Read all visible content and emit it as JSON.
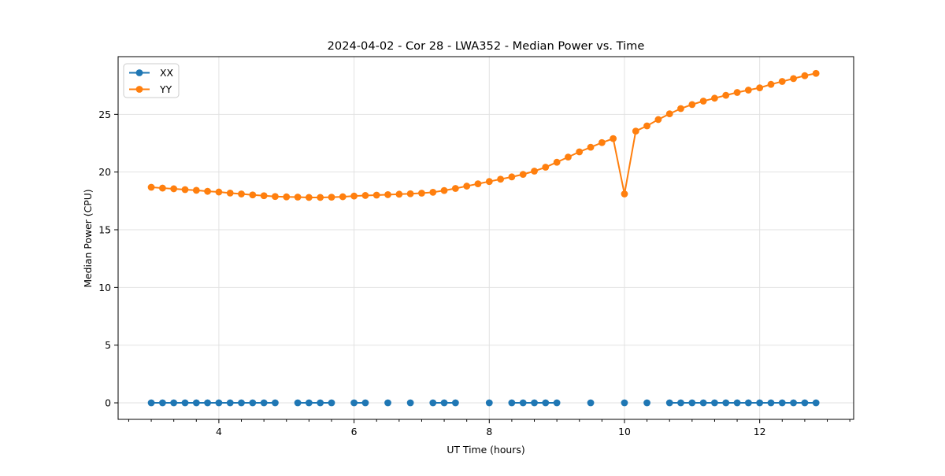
{
  "chart_data": {
    "type": "line",
    "title": "2024-04-02 - Cor 28 - LWA352 - Median Power vs. Time",
    "xlabel": "UT Time (hours)",
    "ylabel": "Median Power (CPU)",
    "xlim": [
      2.51,
      13.39
    ],
    "ylim": [
      -1.43,
      30.0
    ],
    "x_ticks": [
      4,
      6,
      8,
      10,
      12
    ],
    "y_ticks": [
      0,
      5,
      10,
      15,
      20,
      25
    ],
    "x_minor_step": 0.3333,
    "grid": true,
    "grid_color": "#e2e2e2",
    "legend_position": "upper left",
    "series": [
      {
        "name": "XX",
        "color": "#1f77b4",
        "points": [
          [
            3.0,
            0
          ],
          [
            3.167,
            0
          ],
          [
            3.333,
            0
          ],
          [
            3.5,
            0
          ],
          [
            3.667,
            0
          ],
          [
            3.833,
            0
          ],
          [
            4.0,
            0
          ],
          [
            4.167,
            0
          ],
          [
            4.333,
            0
          ],
          [
            4.5,
            0
          ],
          [
            4.667,
            0
          ],
          [
            4.833,
            0
          ],
          [
            5.167,
            0
          ],
          [
            5.333,
            0
          ],
          [
            5.5,
            0
          ],
          [
            5.667,
            0
          ],
          [
            6.0,
            0
          ],
          [
            6.167,
            0
          ],
          [
            6.5,
            0
          ],
          [
            6.833,
            0
          ],
          [
            7.167,
            0
          ],
          [
            7.333,
            0
          ],
          [
            7.5,
            0
          ],
          [
            8.0,
            0
          ],
          [
            8.333,
            0
          ],
          [
            8.5,
            0
          ],
          [
            8.667,
            0
          ],
          [
            8.833,
            0
          ],
          [
            9.0,
            0
          ],
          [
            9.5,
            0
          ],
          [
            10.0,
            0
          ],
          [
            10.333,
            0
          ],
          [
            10.667,
            0
          ],
          [
            10.833,
            0
          ],
          [
            11.0,
            0
          ],
          [
            11.167,
            0
          ],
          [
            11.333,
            0
          ],
          [
            11.5,
            0
          ],
          [
            11.667,
            0
          ],
          [
            11.833,
            0
          ],
          [
            12.0,
            0
          ],
          [
            12.167,
            0
          ],
          [
            12.333,
            0
          ],
          [
            12.5,
            0
          ],
          [
            12.667,
            0
          ],
          [
            12.833,
            0
          ]
        ]
      },
      {
        "name": "YY",
        "color": "#ff7f0e",
        "points": [
          [
            3.0,
            18.68
          ],
          [
            3.167,
            18.61
          ],
          [
            3.333,
            18.55
          ],
          [
            3.5,
            18.48
          ],
          [
            3.667,
            18.42
          ],
          [
            3.833,
            18.33
          ],
          [
            4.0,
            18.27
          ],
          [
            4.167,
            18.18
          ],
          [
            4.333,
            18.1
          ],
          [
            4.5,
            18.02
          ],
          [
            4.667,
            17.95
          ],
          [
            4.833,
            17.88
          ],
          [
            5.0,
            17.85
          ],
          [
            5.167,
            17.83
          ],
          [
            5.333,
            17.8
          ],
          [
            5.5,
            17.8
          ],
          [
            5.667,
            17.82
          ],
          [
            5.833,
            17.86
          ],
          [
            6.0,
            17.92
          ],
          [
            6.167,
            17.97
          ],
          [
            6.333,
            18.0
          ],
          [
            6.5,
            18.04
          ],
          [
            6.667,
            18.08
          ],
          [
            6.833,
            18.12
          ],
          [
            7.0,
            18.17
          ],
          [
            7.167,
            18.25
          ],
          [
            7.333,
            18.4
          ],
          [
            7.5,
            18.58
          ],
          [
            7.667,
            18.78
          ],
          [
            7.833,
            18.98
          ],
          [
            8.0,
            19.18
          ],
          [
            8.167,
            19.38
          ],
          [
            8.333,
            19.58
          ],
          [
            8.5,
            19.8
          ],
          [
            8.667,
            20.08
          ],
          [
            8.833,
            20.42
          ],
          [
            9.0,
            20.85
          ],
          [
            9.167,
            21.3
          ],
          [
            9.333,
            21.75
          ],
          [
            9.5,
            22.15
          ],
          [
            9.667,
            22.55
          ],
          [
            9.833,
            22.9
          ],
          [
            10.0,
            18.1
          ],
          [
            10.167,
            23.55
          ],
          [
            10.333,
            24.0
          ],
          [
            10.5,
            24.55
          ],
          [
            10.667,
            25.05
          ],
          [
            10.833,
            25.5
          ],
          [
            11.0,
            25.85
          ],
          [
            11.167,
            26.15
          ],
          [
            11.333,
            26.4
          ],
          [
            11.5,
            26.65
          ],
          [
            11.667,
            26.9
          ],
          [
            11.833,
            27.1
          ],
          [
            12.0,
            27.3
          ],
          [
            12.167,
            27.6
          ],
          [
            12.333,
            27.85
          ],
          [
            12.5,
            28.1
          ],
          [
            12.667,
            28.35
          ],
          [
            12.833,
            28.55
          ]
        ]
      }
    ]
  }
}
